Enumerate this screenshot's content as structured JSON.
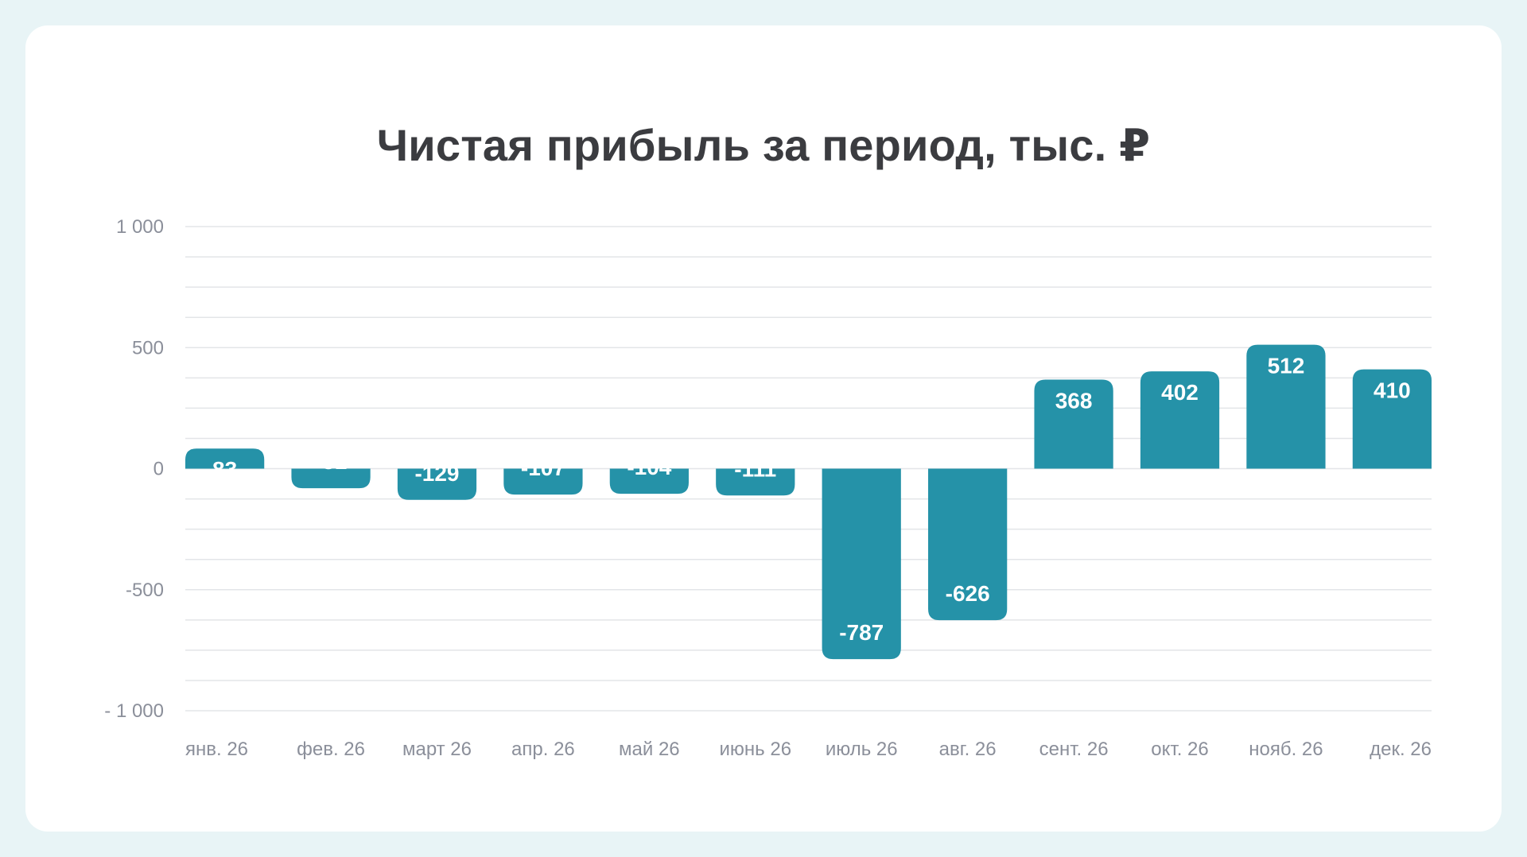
{
  "colors": {
    "background": "#e8f4f6",
    "card": "#ffffff",
    "bar": "#2592a8",
    "title": "#3b3c40",
    "axis_text": "#8b8f9a",
    "grid": "#e3e5e8",
    "bar_label": "#ffffff"
  },
  "chart_data": {
    "type": "bar",
    "title": "Чистая прибыль за период, тыс. ₽",
    "xlabel": "",
    "ylabel": "",
    "categories": [
      "янв. 26",
      "фев. 26",
      "март 26",
      "апр. 26",
      "май 26",
      "июнь 26",
      "июль 26",
      "авг. 26",
      "сент. 26",
      "окт. 26",
      "нояб. 26",
      "дек. 26"
    ],
    "values": [
      83,
      -81,
      -129,
      -107,
      -104,
      -111,
      -787,
      -626,
      368,
      402,
      512,
      410
    ],
    "data_labels": [
      "83",
      "-81",
      "-129",
      "-107",
      "-104",
      "-111",
      "-787",
      "-626",
      "368",
      "402",
      "512",
      "410"
    ],
    "ylim": [
      -1000,
      1000
    ],
    "yticks": [
      1000,
      500,
      0,
      -500,
      -1000
    ],
    "ytick_labels": [
      "1 000",
      "500",
      "0",
      "-500",
      "- 1 000"
    ],
    "minor_grid_step": 125,
    "grid": true,
    "legend": "none"
  }
}
